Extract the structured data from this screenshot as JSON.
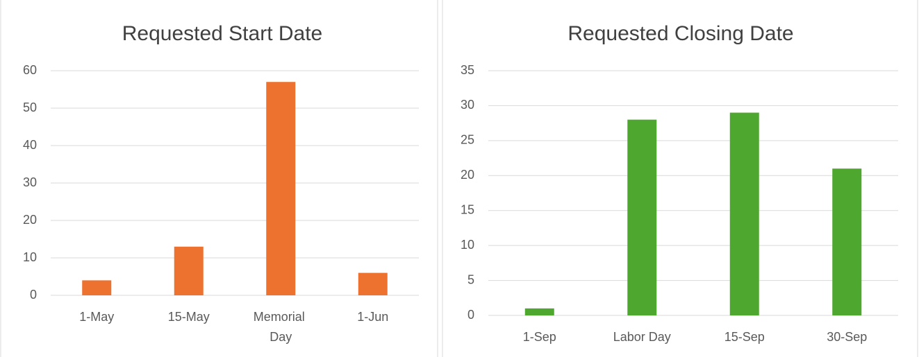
{
  "chart_data": [
    {
      "type": "bar",
      "title": "Requested Start Date",
      "categories": [
        "1-May",
        "15-May",
        "Memorial Day",
        "1-Jun"
      ],
      "values": [
        4,
        13,
        57,
        6
      ],
      "color": "#ed7230",
      "ylim": [
        0,
        60
      ],
      "yticks": [
        0,
        10,
        20,
        30,
        40,
        50,
        60
      ],
      "grid": true
    },
    {
      "type": "bar",
      "title": "Requested Closing Date",
      "categories": [
        "1-Sep",
        "Labor Day",
        "15-Sep",
        "30-Sep"
      ],
      "values": [
        1,
        28,
        29,
        21
      ],
      "color": "#4ea72e",
      "ylim": [
        0,
        35
      ],
      "yticks": [
        0,
        5,
        10,
        15,
        20,
        25,
        30,
        35
      ],
      "grid": true
    }
  ]
}
